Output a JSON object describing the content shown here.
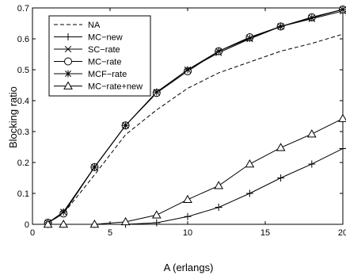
{
  "chart_data": {
    "type": "line",
    "xlabel": "A (erlangs)",
    "ylabel": "Blocking ratio",
    "xlim": [
      0,
      20
    ],
    "ylim": [
      0,
      0.7
    ],
    "xticks": [
      0,
      5,
      10,
      15,
      20
    ],
    "yticks": [
      0,
      0.1,
      0.2,
      0.3,
      0.4,
      0.5,
      0.6,
      0.7
    ],
    "xtick_labels": [
      "0",
      "5",
      "10",
      "15",
      "20"
    ],
    "ytick_labels": [
      "0",
      "0.1",
      "0.2",
      "0.3",
      "0.4",
      "0.5",
      "0.6",
      "0.7"
    ],
    "grid": false,
    "legend_position": "top-left",
    "series": [
      {
        "name": "NA",
        "line": "dashed",
        "marker": "none",
        "x": [
          1,
          2,
          4,
          6,
          8,
          10,
          12,
          14,
          16,
          18,
          20
        ],
        "y": [
          0.005,
          0.035,
          0.16,
          0.29,
          0.37,
          0.44,
          0.49,
          0.525,
          0.56,
          0.585,
          0.615
        ]
      },
      {
        "name": "MC−new",
        "line": "solid",
        "marker": "plus",
        "x": [
          1,
          2,
          4,
          6,
          8,
          10,
          12,
          14,
          16,
          18,
          20
        ],
        "y": [
          0,
          0,
          0,
          0,
          0.005,
          0.025,
          0.055,
          0.1,
          0.15,
          0.195,
          0.245
        ]
      },
      {
        "name": "SC−rate",
        "line": "solid",
        "marker": "x",
        "x": [
          1,
          2,
          4,
          6,
          8,
          10,
          12,
          14,
          16,
          18,
          20
        ],
        "y": [
          0.005,
          0.04,
          0.185,
          0.32,
          0.425,
          0.5,
          0.555,
          0.6,
          0.64,
          0.665,
          0.69
        ]
      },
      {
        "name": "MC−rate",
        "line": "solid",
        "marker": "circle",
        "x": [
          1,
          2,
          4,
          6,
          8,
          10,
          12,
          14,
          16,
          18,
          20
        ],
        "y": [
          0.005,
          0.035,
          0.185,
          0.32,
          0.425,
          0.495,
          0.56,
          0.605,
          0.64,
          0.67,
          0.695
        ]
      },
      {
        "name": "MCF−rate",
        "line": "solid",
        "marker": "asterisk",
        "x": [
          1,
          2,
          4,
          6,
          8,
          10,
          12,
          14,
          16,
          18,
          20
        ],
        "y": [
          0.005,
          0.04,
          0.185,
          0.32,
          0.428,
          0.5,
          0.56,
          0.602,
          0.64,
          0.668,
          0.695
        ]
      },
      {
        "name": "MC−rate+new",
        "line": "solid",
        "marker": "triangle",
        "x": [
          1,
          2,
          4,
          6,
          8,
          10,
          12,
          14,
          16,
          18,
          20
        ],
        "y": [
          0,
          0,
          0,
          0.008,
          0.03,
          0.08,
          0.125,
          0.195,
          0.248,
          0.292,
          0.342
        ]
      }
    ]
  }
}
